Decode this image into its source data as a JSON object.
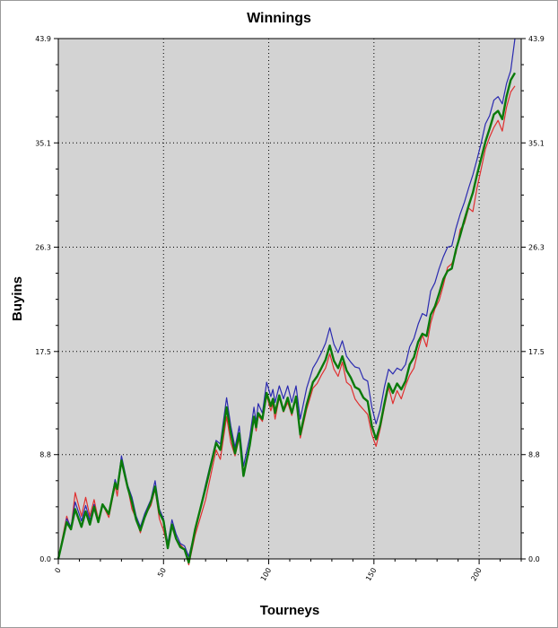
{
  "chart_data": {
    "type": "line",
    "title": "Winnings",
    "xlabel": "Tourneys",
    "ylabel": "Buyins",
    "xlim": [
      0,
      220
    ],
    "ylim": [
      0.0,
      43.9
    ],
    "x_ticks": [
      0,
      50,
      100,
      150,
      200
    ],
    "x_tick_labels": [
      "0",
      "50",
      "100",
      "150",
      "200"
    ],
    "y_ticks": [
      0.0,
      8.8,
      17.5,
      26.3,
      35.1,
      43.9
    ],
    "y_tick_labels": [
      "0.0",
      "8.8",
      "17.5",
      "26.3",
      "35.1",
      "43.9"
    ],
    "grid": true,
    "background": "#d3d3d3",
    "series": [
      {
        "color": "#e03030",
        "points": [
          [
            0,
            0.0
          ],
          [
            4,
            3.6
          ],
          [
            6,
            2.5
          ],
          [
            8,
            5.6
          ],
          [
            11,
            3.6
          ],
          [
            13,
            5.2
          ],
          [
            15,
            3.6
          ],
          [
            17,
            5.0
          ],
          [
            19,
            3.3
          ],
          [
            21,
            4.6
          ],
          [
            24,
            3.5
          ],
          [
            27,
            6.2
          ],
          [
            28,
            5.3
          ],
          [
            30,
            8.4
          ],
          [
            33,
            6.0
          ],
          [
            35,
            4.2
          ],
          [
            37,
            3.4
          ],
          [
            39,
            2.2
          ],
          [
            41,
            3.6
          ],
          [
            44,
            4.5
          ],
          [
            46,
            5.9
          ],
          [
            48,
            3.4
          ],
          [
            50,
            2.4
          ],
          [
            52,
            1.0
          ],
          [
            54,
            2.8
          ],
          [
            56,
            1.7
          ],
          [
            58,
            1.2
          ],
          [
            60,
            0.8
          ],
          [
            62,
            -0.5
          ],
          [
            65,
            2.0
          ],
          [
            70,
            5.0
          ],
          [
            75,
            9.2
          ],
          [
            77,
            8.4
          ],
          [
            80,
            12.0
          ],
          [
            82,
            9.8
          ],
          [
            84,
            8.7
          ],
          [
            86,
            10.2
          ],
          [
            88,
            7.2
          ],
          [
            91,
            9.5
          ],
          [
            93,
            11.9
          ],
          [
            94,
            10.8
          ],
          [
            95,
            12.1
          ],
          [
            97,
            11.6
          ],
          [
            99,
            13.8
          ],
          [
            101,
            12.5
          ],
          [
            102,
            13.1
          ],
          [
            103,
            11.8
          ],
          [
            105,
            13.6
          ],
          [
            107,
            12.4
          ],
          [
            109,
            13.2
          ],
          [
            111,
            12.1
          ],
          [
            113,
            13.7
          ],
          [
            115,
            10.2
          ],
          [
            118,
            12.6
          ],
          [
            121,
            14.4
          ],
          [
            123,
            14.8
          ],
          [
            125,
            15.5
          ],
          [
            127,
            16.1
          ],
          [
            129,
            17.3
          ],
          [
            131,
            16.0
          ],
          [
            133,
            15.4
          ],
          [
            135,
            16.6
          ],
          [
            137,
            14.9
          ],
          [
            139,
            14.6
          ],
          [
            141,
            13.5
          ],
          [
            143,
            13.0
          ],
          [
            145,
            12.6
          ],
          [
            147,
            12.2
          ],
          [
            149,
            10.5
          ],
          [
            151,
            9.5
          ],
          [
            153,
            11.0
          ],
          [
            155,
            12.8
          ],
          [
            157,
            14.5
          ],
          [
            159,
            13.1
          ],
          [
            161,
            14.2
          ],
          [
            163,
            13.5
          ],
          [
            165,
            14.6
          ],
          [
            167,
            15.5
          ],
          [
            169,
            16.1
          ],
          [
            171,
            17.6
          ],
          [
            173,
            18.9
          ],
          [
            175,
            17.9
          ],
          [
            177,
            19.9
          ],
          [
            179,
            21.1
          ],
          [
            181,
            21.8
          ],
          [
            183,
            23.1
          ],
          [
            185,
            24.6
          ],
          [
            187,
            24.9
          ],
          [
            189,
            25.8
          ],
          [
            191,
            27.8
          ],
          [
            193,
            28.3
          ],
          [
            195,
            29.6
          ],
          [
            197,
            29.3
          ],
          [
            199,
            31.3
          ],
          [
            201,
            32.9
          ],
          [
            203,
            34.6
          ],
          [
            205,
            35.6
          ],
          [
            207,
            36.4
          ],
          [
            209,
            37.0
          ],
          [
            211,
            36.1
          ],
          [
            213,
            38.1
          ],
          [
            215,
            39.4
          ],
          [
            217,
            39.9
          ]
        ]
      },
      {
        "color": "#2a2ab0",
        "points": [
          [
            0,
            0.0
          ],
          [
            4,
            3.4
          ],
          [
            6,
            2.7
          ],
          [
            8,
            4.8
          ],
          [
            11,
            3.2
          ],
          [
            13,
            4.5
          ],
          [
            15,
            3.3
          ],
          [
            17,
            4.6
          ],
          [
            19,
            3.2
          ],
          [
            21,
            4.5
          ],
          [
            24,
            3.8
          ],
          [
            27,
            6.7
          ],
          [
            28,
            6.0
          ],
          [
            30,
            8.7
          ],
          [
            33,
            6.2
          ],
          [
            35,
            5.2
          ],
          [
            37,
            3.6
          ],
          [
            39,
            2.7
          ],
          [
            41,
            3.8
          ],
          [
            44,
            5.0
          ],
          [
            46,
            6.6
          ],
          [
            48,
            4.2
          ],
          [
            50,
            3.4
          ],
          [
            52,
            1.3
          ],
          [
            54,
            3.3
          ],
          [
            56,
            2.1
          ],
          [
            58,
            1.3
          ],
          [
            60,
            1.1
          ],
          [
            62,
            0.2
          ],
          [
            65,
            2.4
          ],
          [
            70,
            6.3
          ],
          [
            75,
            10.0
          ],
          [
            77,
            9.7
          ],
          [
            80,
            13.6
          ],
          [
            82,
            11.2
          ],
          [
            84,
            9.4
          ],
          [
            86,
            11.2
          ],
          [
            88,
            7.8
          ],
          [
            91,
            10.3
          ],
          [
            93,
            12.8
          ],
          [
            94,
            11.5
          ],
          [
            95,
            13.1
          ],
          [
            97,
            12.3
          ],
          [
            99,
            14.9
          ],
          [
            101,
            13.7
          ],
          [
            102,
            14.3
          ],
          [
            103,
            13.2
          ],
          [
            105,
            14.6
          ],
          [
            107,
            13.5
          ],
          [
            109,
            14.6
          ],
          [
            111,
            13.2
          ],
          [
            113,
            14.6
          ],
          [
            115,
            11.8
          ],
          [
            118,
            14.4
          ],
          [
            121,
            16.1
          ],
          [
            123,
            16.7
          ],
          [
            125,
            17.4
          ],
          [
            127,
            18.2
          ],
          [
            129,
            19.5
          ],
          [
            131,
            18.1
          ],
          [
            133,
            17.4
          ],
          [
            135,
            18.4
          ],
          [
            137,
            17.1
          ],
          [
            139,
            16.6
          ],
          [
            141,
            16.2
          ],
          [
            143,
            16.1
          ],
          [
            145,
            15.2
          ],
          [
            147,
            15.0
          ],
          [
            149,
            12.8
          ],
          [
            151,
            11.4
          ],
          [
            153,
            12.6
          ],
          [
            155,
            14.5
          ],
          [
            157,
            16.0
          ],
          [
            159,
            15.6
          ],
          [
            161,
            16.1
          ],
          [
            163,
            15.9
          ],
          [
            165,
            16.4
          ],
          [
            167,
            17.9
          ],
          [
            169,
            18.6
          ],
          [
            171,
            19.8
          ],
          [
            173,
            20.7
          ],
          [
            175,
            20.5
          ],
          [
            177,
            22.6
          ],
          [
            179,
            23.3
          ],
          [
            181,
            24.5
          ],
          [
            183,
            25.5
          ],
          [
            185,
            26.3
          ],
          [
            187,
            26.4
          ],
          [
            189,
            27.9
          ],
          [
            191,
            29.1
          ],
          [
            193,
            30.1
          ],
          [
            195,
            31.3
          ],
          [
            197,
            32.4
          ],
          [
            199,
            33.7
          ],
          [
            201,
            35.1
          ],
          [
            203,
            36.7
          ],
          [
            205,
            37.4
          ],
          [
            207,
            38.7
          ],
          [
            209,
            39.0
          ],
          [
            211,
            38.4
          ],
          [
            213,
            40.1
          ],
          [
            215,
            41.2
          ],
          [
            217,
            43.9
          ]
        ]
      },
      {
        "color": "#0a7a0a",
        "points": [
          [
            0,
            0.0
          ],
          [
            4,
            3.1
          ],
          [
            6,
            2.5
          ],
          [
            8,
            4.2
          ],
          [
            11,
            2.7
          ],
          [
            13,
            4.0
          ],
          [
            15,
            2.9
          ],
          [
            17,
            4.4
          ],
          [
            19,
            3.1
          ],
          [
            21,
            4.6
          ],
          [
            24,
            3.8
          ],
          [
            27,
            6.4
          ],
          [
            28,
            5.9
          ],
          [
            30,
            8.3
          ],
          [
            33,
            6.0
          ],
          [
            35,
            4.8
          ],
          [
            37,
            3.3
          ],
          [
            39,
            2.4
          ],
          [
            41,
            3.5
          ],
          [
            44,
            4.8
          ],
          [
            46,
            6.1
          ],
          [
            48,
            3.9
          ],
          [
            50,
            3.2
          ],
          [
            52,
            0.9
          ],
          [
            54,
            2.9
          ],
          [
            56,
            1.7
          ],
          [
            58,
            1.0
          ],
          [
            60,
            0.8
          ],
          [
            62,
            -0.3
          ],
          [
            65,
            2.5
          ],
          [
            70,
            6.0
          ],
          [
            75,
            9.8
          ],
          [
            77,
            9.2
          ],
          [
            80,
            12.8
          ],
          [
            82,
            10.6
          ],
          [
            84,
            8.9
          ],
          [
            86,
            10.6
          ],
          [
            88,
            7.0
          ],
          [
            91,
            9.6
          ],
          [
            93,
            12.0
          ],
          [
            94,
            11.1
          ],
          [
            95,
            12.3
          ],
          [
            97,
            11.8
          ],
          [
            99,
            14.0
          ],
          [
            101,
            12.9
          ],
          [
            102,
            13.5
          ],
          [
            103,
            12.3
          ],
          [
            105,
            13.8
          ],
          [
            107,
            12.5
          ],
          [
            109,
            13.6
          ],
          [
            111,
            12.3
          ],
          [
            113,
            13.7
          ],
          [
            115,
            10.5
          ],
          [
            118,
            13.0
          ],
          [
            121,
            14.9
          ],
          [
            123,
            15.4
          ],
          [
            125,
            16.1
          ],
          [
            127,
            16.8
          ],
          [
            129,
            18.0
          ],
          [
            131,
            16.7
          ],
          [
            133,
            16.1
          ],
          [
            135,
            17.1
          ],
          [
            137,
            15.9
          ],
          [
            139,
            15.3
          ],
          [
            141,
            14.5
          ],
          [
            143,
            14.3
          ],
          [
            145,
            13.6
          ],
          [
            147,
            13.3
          ],
          [
            149,
            11.2
          ],
          [
            151,
            10.1
          ],
          [
            153,
            11.3
          ],
          [
            155,
            13.1
          ],
          [
            157,
            14.8
          ],
          [
            159,
            14.0
          ],
          [
            161,
            14.8
          ],
          [
            163,
            14.3
          ],
          [
            165,
            15.0
          ],
          [
            167,
            16.4
          ],
          [
            169,
            17.0
          ],
          [
            171,
            18.3
          ],
          [
            173,
            19.0
          ],
          [
            175,
            18.8
          ],
          [
            177,
            20.6
          ],
          [
            179,
            21.3
          ],
          [
            181,
            22.4
          ],
          [
            183,
            23.6
          ],
          [
            185,
            24.3
          ],
          [
            187,
            24.5
          ],
          [
            189,
            26.1
          ],
          [
            191,
            27.3
          ],
          [
            193,
            28.6
          ],
          [
            195,
            29.8
          ],
          [
            197,
            30.9
          ],
          [
            199,
            32.4
          ],
          [
            201,
            33.8
          ],
          [
            203,
            35.2
          ],
          [
            205,
            36.3
          ],
          [
            207,
            37.5
          ],
          [
            209,
            37.8
          ],
          [
            211,
            37.1
          ],
          [
            213,
            39.0
          ],
          [
            215,
            40.4
          ],
          [
            217,
            41.0
          ]
        ]
      }
    ]
  }
}
